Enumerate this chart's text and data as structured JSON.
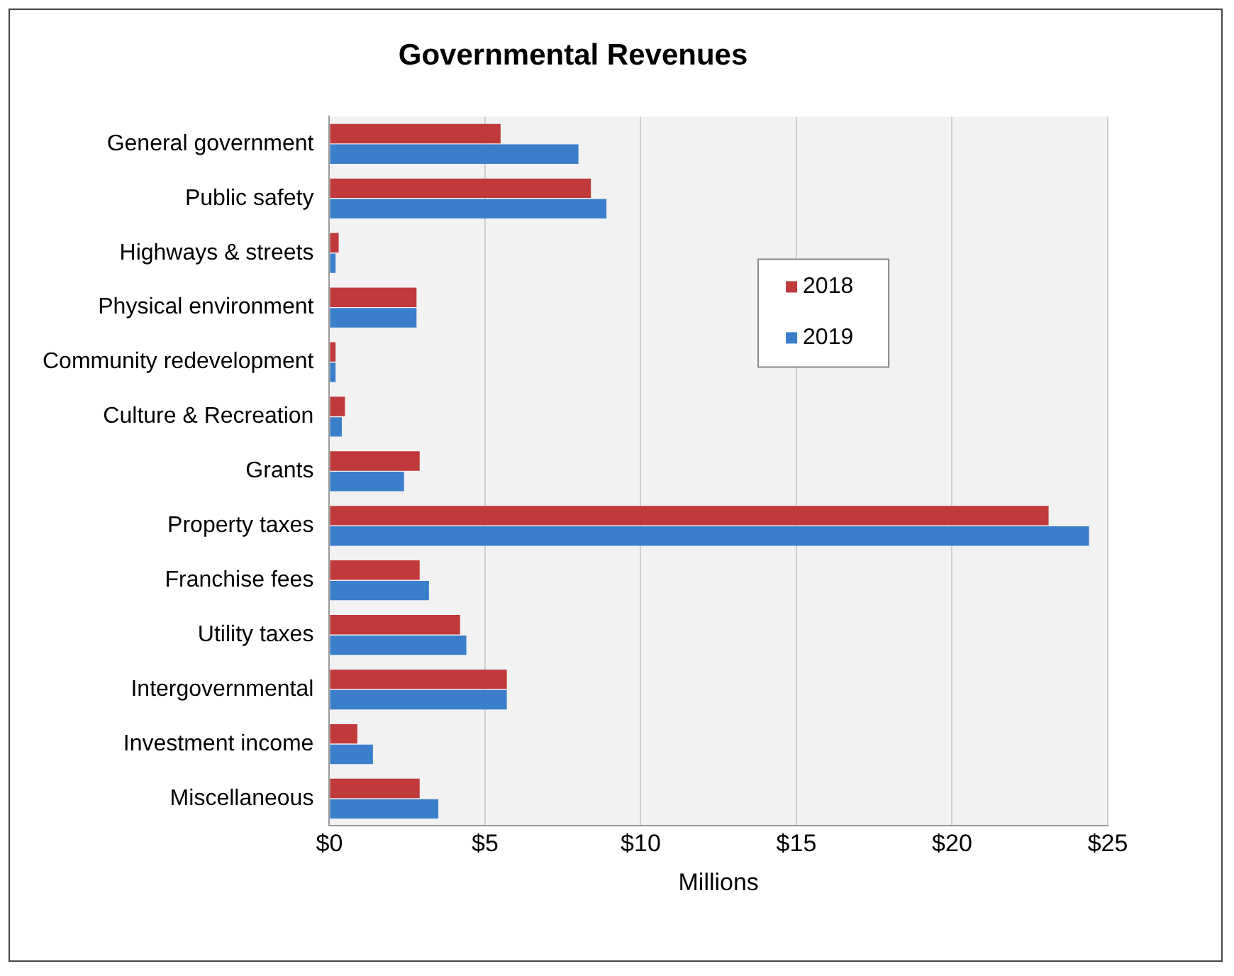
{
  "chart_data": {
    "type": "bar",
    "orientation": "horizontal",
    "title": "Governmental Revenues",
    "xlabel": "Millions",
    "categories": [
      "General government",
      "Public safety",
      "Highways & streets",
      "Physical environment",
      "Community redevelopment",
      "Culture & Recreation",
      "Grants",
      "Property taxes",
      "Franchise fees",
      "Utility taxes",
      "Intergovernmental",
      "Investment income",
      "Miscellaneous"
    ],
    "series": [
      {
        "name": "2018",
        "color": "#c0393b",
        "values": [
          5.5,
          8.4,
          0.3,
          2.8,
          0.2,
          0.5,
          2.9,
          23.1,
          2.9,
          4.2,
          5.7,
          0.9,
          2.9
        ]
      },
      {
        "name": "2019",
        "color": "#3b7ecb",
        "values": [
          8.0,
          8.9,
          0.2,
          2.8,
          0.2,
          0.4,
          2.4,
          24.4,
          3.2,
          4.4,
          5.7,
          1.4,
          3.5
        ]
      }
    ],
    "xlim": [
      0,
      25
    ],
    "xticks": [
      {
        "value": 0,
        "label": "$0"
      },
      {
        "value": 5,
        "label": "$5"
      },
      {
        "value": 10,
        "label": "$10"
      },
      {
        "value": 15,
        "label": "$15"
      },
      {
        "value": 20,
        "label": "$20"
      },
      {
        "value": 25,
        "label": "$25"
      }
    ],
    "grid": "x",
    "legend": "top right"
  }
}
